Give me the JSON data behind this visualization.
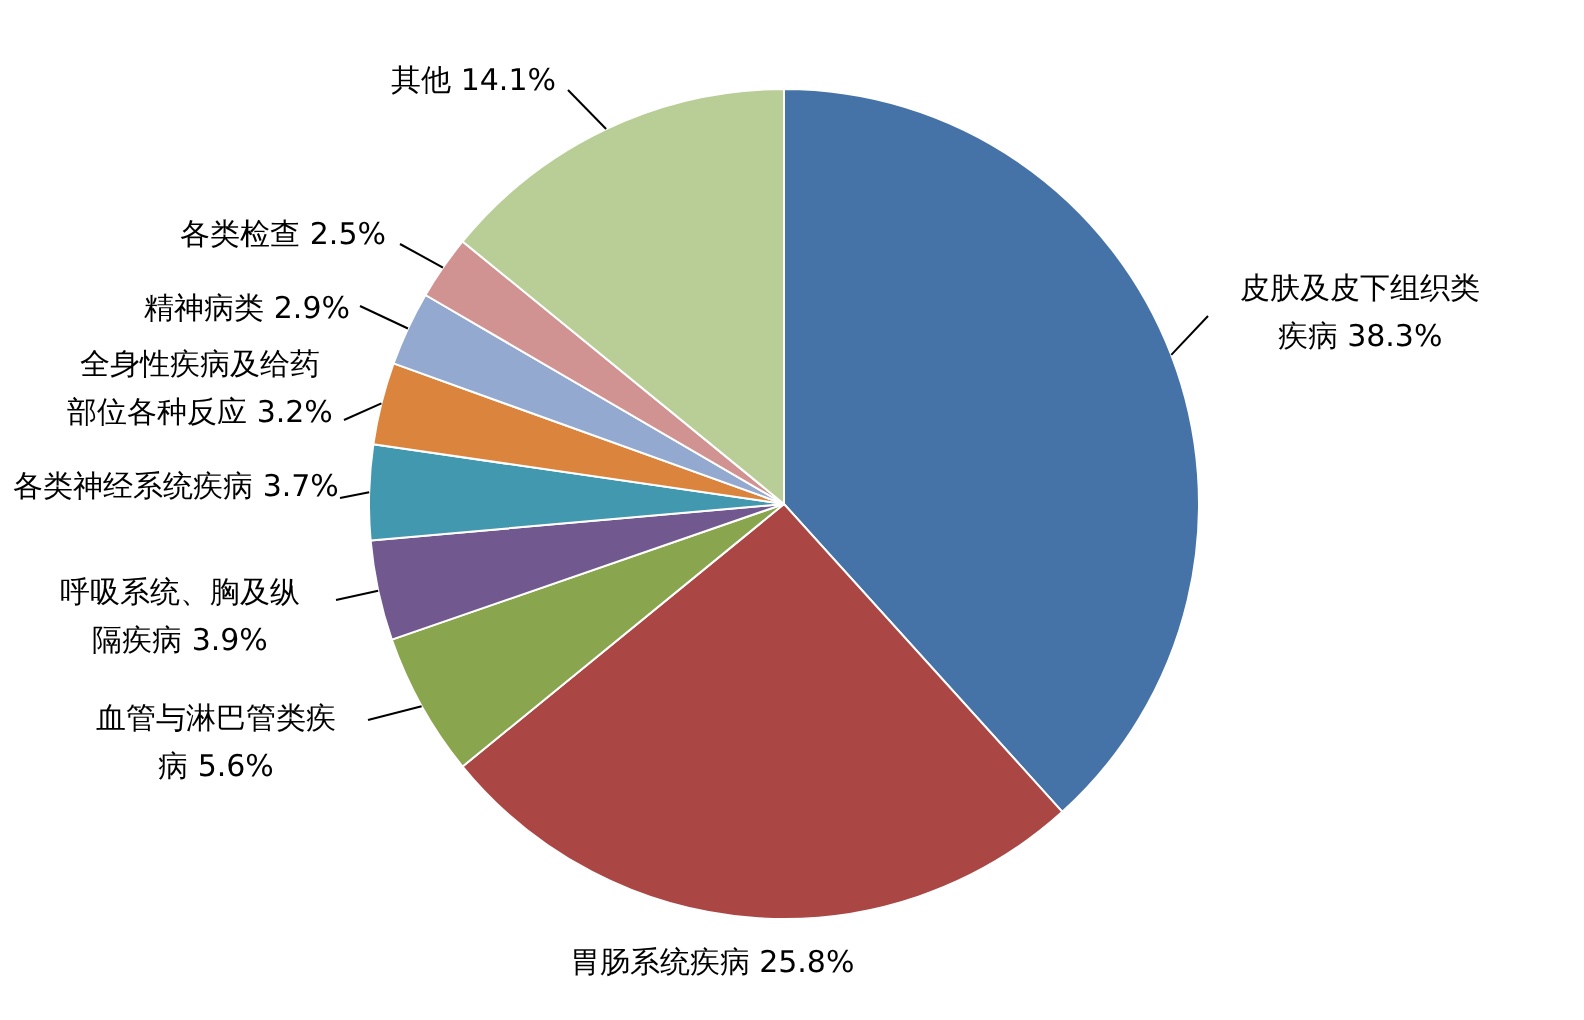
{
  "chart_data": {
    "type": "pie",
    "categories": [
      "皮肤及皮下组织类疾病",
      "胃肠系统疾病",
      "血管与淋巴管类疾病",
      "呼吸系统、胸及纵隔疾病",
      "各类神经系统疾病",
      "全身性疾病及给药部位各种反应",
      "精神病类",
      "各类检查",
      "其他"
    ],
    "values": [
      38.3,
      25.8,
      5.6,
      3.9,
      3.7,
      3.2,
      2.9,
      2.5,
      14.1
    ],
    "value_labels": [
      "38.3%",
      "25.8%",
      "5.6%",
      "3.9%",
      "3.7%",
      "3.2%",
      "2.9%",
      "2.5%",
      "14.1%"
    ],
    "colors": [
      "#4572a7",
      "#aa4643",
      "#89a54e",
      "#71588f",
      "#4198af",
      "#db843d",
      "#93a9cf",
      "#d19392",
      "#b9cd96"
    ],
    "legend": false
  }
}
